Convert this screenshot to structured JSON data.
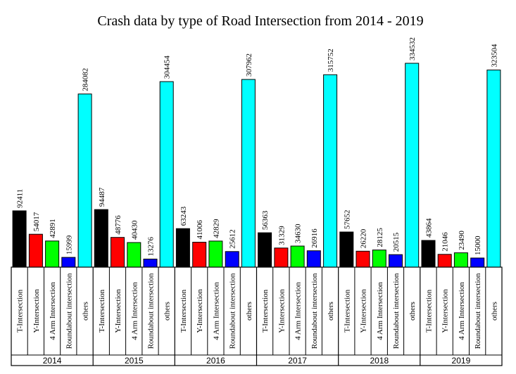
{
  "chart_data": {
    "type": "bar",
    "title": "Crash data by type of Road Intersection from 2014 - 2019",
    "groups": [
      "2014",
      "2015",
      "2016",
      "2017",
      "2018",
      "2019"
    ],
    "categories": [
      "T-Intersection",
      "Y-Intersection",
      "4 Arm Intersection",
      "Roundabout intersection",
      "others"
    ],
    "colors": [
      "#000000",
      "#ff0000",
      "#00ff00",
      "#0000ff",
      "#00ffff"
    ],
    "values": [
      [
        92411,
        54017,
        42891,
        15999,
        284082
      ],
      [
        94487,
        48776,
        40430,
        13276,
        304454
      ],
      [
        63243,
        41006,
        42829,
        25612,
        307962
      ],
      [
        56363,
        31329,
        34630,
        26916,
        315752
      ],
      [
        57652,
        26220,
        28125,
        20515,
        334532
      ],
      [
        43864,
        21046,
        23490,
        15000,
        323504
      ]
    ],
    "ylim": [
      0,
      334532
    ],
    "grid": false,
    "legend": "none"
  }
}
